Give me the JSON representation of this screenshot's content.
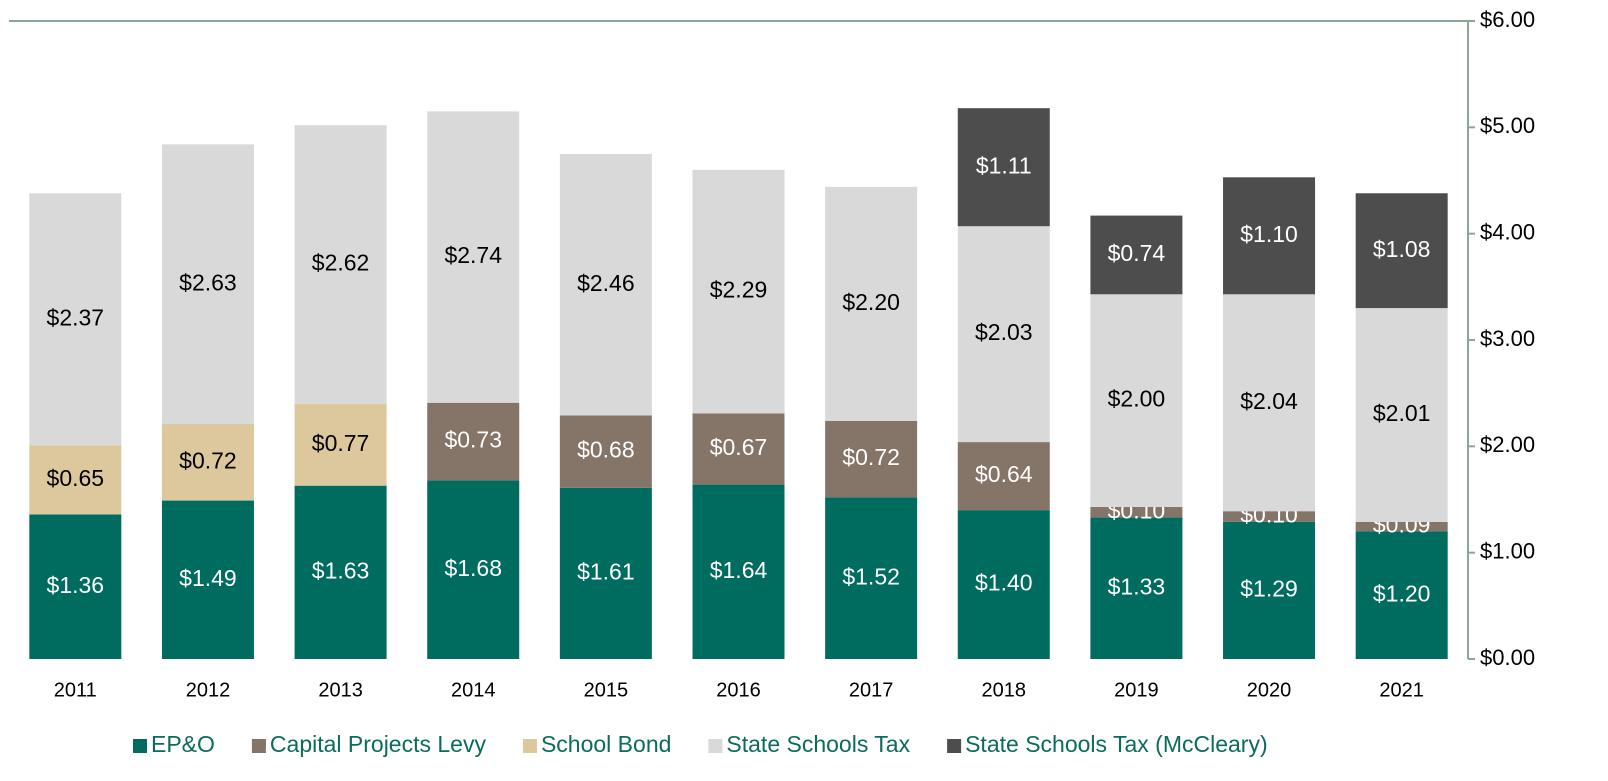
{
  "chart_data": {
    "type": "stacked_bar",
    "categories": [
      "2011",
      "2012",
      "2013",
      "2014",
      "2015",
      "2016",
      "2017",
      "2018",
      "2019",
      "2020",
      "2021"
    ],
    "series": [
      {
        "name": "EP&O",
        "color": "#006b5f",
        "label_color": "#ffffff",
        "values": [
          1.36,
          1.49,
          1.63,
          1.68,
          1.61,
          1.64,
          1.52,
          1.4,
          1.33,
          1.29,
          1.2
        ],
        "value_labels": [
          "$1.36",
          "$1.49",
          "$1.63",
          "$1.68",
          "$1.61",
          "$1.64",
          "$1.52",
          "$1.40",
          "$1.33",
          "$1.29",
          "$1.20"
        ]
      },
      {
        "name": "Capital Projects Levy",
        "color": "#857468",
        "label_color": "#ffffff",
        "values": [
          null,
          null,
          null,
          0.73,
          0.68,
          0.67,
          0.72,
          0.64,
          0.1,
          0.1,
          0.09
        ],
        "value_labels": [
          null,
          null,
          null,
          "$0.73",
          "$0.68",
          "$0.67",
          "$0.72",
          "$0.64",
          "$0.10",
          "$0.10",
          "$0.09"
        ]
      },
      {
        "name": "School Bond",
        "color": "#dcc89c",
        "label_color": "#000000",
        "values": [
          0.65,
          0.72,
          0.77,
          null,
          null,
          null,
          null,
          null,
          null,
          null,
          null
        ],
        "value_labels": [
          "$0.65",
          "$0.72",
          "$0.77",
          null,
          null,
          null,
          null,
          null,
          null,
          null,
          null
        ]
      },
      {
        "name": "State Schools Tax",
        "color": "#d9d9d9",
        "label_color": "#000000",
        "values": [
          2.37,
          2.63,
          2.62,
          2.74,
          2.46,
          2.29,
          2.2,
          2.03,
          2.0,
          2.04,
          2.01
        ],
        "value_labels": [
          "$2.37",
          "$2.63",
          "$2.62",
          "$2.74",
          "$2.46",
          "$2.29",
          "$2.20",
          "$2.03",
          "$2.00",
          "$2.04",
          "$2.01"
        ]
      },
      {
        "name": "State Schools Tax (McCleary)",
        "color": "#4d4d4d",
        "label_color": "#ffffff",
        "values": [
          null,
          null,
          null,
          null,
          null,
          null,
          null,
          1.11,
          0.74,
          1.1,
          1.08
        ],
        "value_labels": [
          null,
          null,
          null,
          null,
          null,
          null,
          null,
          "$1.11",
          "$0.74",
          "$1.10",
          "$1.08"
        ]
      }
    ],
    "ylim": [
      0,
      6
    ],
    "yticks": [
      {
        "value": 0,
        "label": "$0.00"
      },
      {
        "value": 1,
        "label": "$1.00"
      },
      {
        "value": 2,
        "label": "$2.00"
      },
      {
        "value": 3,
        "label": "$3.00"
      },
      {
        "value": 4,
        "label": "$4.00"
      },
      {
        "value": 5,
        "label": "$5.00"
      },
      {
        "value": 6,
        "label": "$6.00"
      }
    ],
    "y_axis_side": "right",
    "legend": "bottom",
    "legend_text_color": "#0b6b5c"
  }
}
